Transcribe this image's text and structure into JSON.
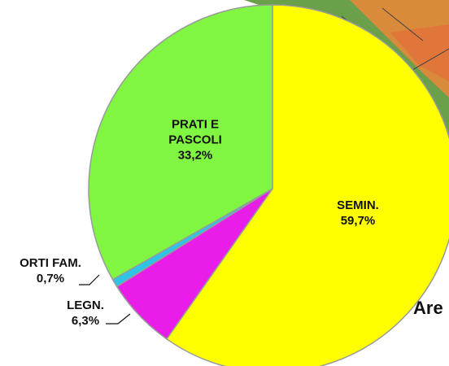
{
  "chart_data": {
    "type": "pie",
    "categories": [
      "SEMIN.",
      "LEGN.",
      "ORTI FAM.",
      "PRATI E PASCOLI"
    ],
    "values": [
      59.7,
      6.3,
      0.7,
      33.2
    ],
    "value_labels": [
      "59,7%",
      "6,3%",
      "0,7%",
      "33,2%"
    ],
    "colors": [
      "#ffff00",
      "#e81ee8",
      "#2ec4e6",
      "#80f542"
    ],
    "annotation": "Are"
  }
}
